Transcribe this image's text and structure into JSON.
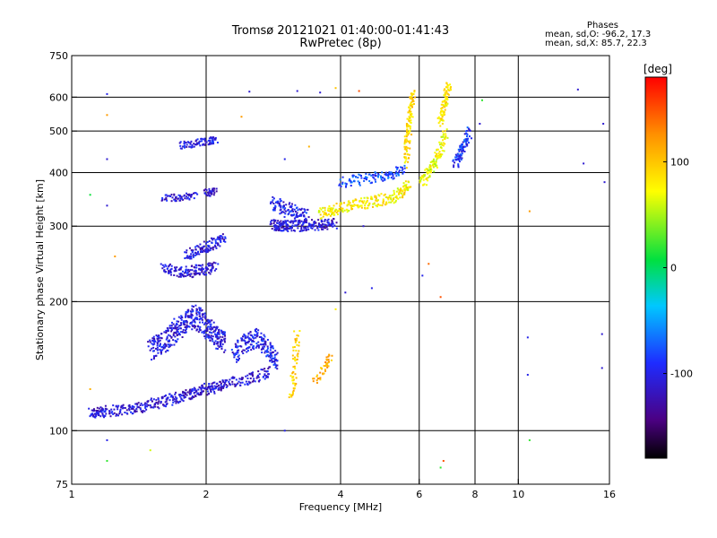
{
  "header": {
    "title_line1": "Tromsø 20121021 01:40:00-01:41:43",
    "title_line2": "RwPretec (8p)",
    "phases_title": "Phases",
    "phases_o": "mean, sd,O: -96.2, 17.3",
    "phases_x": "mean, sd,X:  85.7, 22.3"
  },
  "colorbar": {
    "unit": "[deg]",
    "ticks": [
      {
        "value": 100,
        "label": "100"
      },
      {
        "value": 0,
        "label": "0"
      },
      {
        "value": -100,
        "label": "-100"
      }
    ],
    "range": [
      -180,
      180
    ]
  },
  "chart_data": {
    "type": "scatter",
    "xlabel": "Frequency [MHz]",
    "ylabel": "Stationary phase Virtual Height [km]",
    "x_scale": "log",
    "y_scale": "log",
    "xlim": [
      1,
      16
    ],
    "ylim": [
      75,
      750
    ],
    "grid": true,
    "x_ticks": [
      {
        "value": 1,
        "label": "1"
      },
      {
        "value": 2,
        "label": "2"
      },
      {
        "value": 4,
        "label": "4"
      },
      {
        "value": 6,
        "label": "6"
      },
      {
        "value": 8,
        "label": "8"
      },
      {
        "value": 10,
        "label": "10"
      },
      {
        "value": 16,
        "label": "16"
      }
    ],
    "y_ticks": [
      {
        "value": 75,
        "label": "75"
      },
      {
        "value": 100,
        "label": "100"
      },
      {
        "value": 200,
        "label": "200"
      },
      {
        "value": 300,
        "label": "300"
      },
      {
        "value": 400,
        "label": "400"
      },
      {
        "value": 500,
        "label": "500"
      },
      {
        "value": 600,
        "label": "600"
      },
      {
        "value": 750,
        "label": "750"
      }
    ],
    "color_scale": {
      "variable": "phase [deg]",
      "min": -180,
      "max": 180
    },
    "traces": [
      {
        "f": [
          1.1,
          1.15,
          1.2,
          1.3,
          1.4,
          1.5,
          1.6,
          1.7,
          1.8,
          1.9,
          2.0,
          2.1,
          2.2,
          2.4,
          2.6,
          2.8
        ],
        "h": [
          110,
          110,
          111,
          112,
          113,
          115,
          117,
          119,
          121,
          123,
          125,
          126,
          128,
          131,
          134,
          137
        ],
        "phase": -110,
        "density": 3
      },
      {
        "f": [
          1.5,
          1.6,
          1.7,
          1.8,
          1.9,
          2.0,
          2.1,
          2.2
        ],
        "h": [
          155,
          160,
          170,
          180,
          185,
          175,
          165,
          160
        ],
        "phase": -105,
        "density": 6
      },
      {
        "f": [
          2.3,
          2.45,
          2.6,
          2.75,
          2.9
        ],
        "h": [
          150,
          160,
          165,
          155,
          145
        ],
        "phase": -100,
        "density": 5
      },
      {
        "f": [
          1.6,
          1.7,
          1.8,
          1.9,
          2.0,
          2.1
        ],
        "h": [
          238,
          236,
          234,
          236,
          238,
          240
        ],
        "phase": -110,
        "density": 3
      },
      {
        "f": [
          1.8,
          1.9,
          2.0,
          2.1,
          2.2
        ],
        "h": [
          258,
          262,
          268,
          275,
          283
        ],
        "phase": -105,
        "density": 3
      },
      {
        "f": [
          1.6,
          1.7,
          1.8,
          1.9
        ],
        "h": [
          350,
          350,
          352,
          353
        ],
        "phase": -110,
        "density": 2
      },
      {
        "f": [
          2.0,
          2.05,
          2.1
        ],
        "h": [
          358,
          360,
          362
        ],
        "phase": -110,
        "density": 2
      },
      {
        "f": [
          1.75,
          1.85,
          1.95,
          2.05,
          2.1
        ],
        "h": [
          463,
          466,
          470,
          475,
          480
        ],
        "phase": -105,
        "density": 2
      },
      {
        "f": [
          2.8,
          2.9,
          3.0,
          3.1,
          3.3,
          3.5,
          3.7,
          3.9
        ],
        "h": [
          303,
          301,
          300,
          300,
          301,
          302,
          303,
          305
        ],
        "phase": -110,
        "density": 3
      },
      {
        "f": [
          2.8,
          3.0,
          3.2,
          3.4
        ],
        "h": [
          340,
          330,
          320,
          315
        ],
        "phase": -100,
        "density": 4
      },
      {
        "f": [
          3.6,
          3.8,
          4.0,
          4.3,
          4.6,
          4.9,
          5.2,
          5.5,
          5.7
        ],
        "h": [
          320,
          326,
          330,
          336,
          340,
          345,
          350,
          360,
          375
        ],
        "phase": 80,
        "density": 3
      },
      {
        "f": [
          4.0,
          4.4,
          4.8,
          5.2,
          5.6
        ],
        "h": [
          380,
          385,
          390,
          398,
          410
        ],
        "phase": -80,
        "density": 3
      },
      {
        "f": [
          5.6,
          5.65,
          5.7,
          5.75,
          5.8
        ],
        "h": [
          420,
          470,
          520,
          570,
          620
        ],
        "phase": 90,
        "density": 3
      },
      {
        "f": [
          6.1,
          6.3,
          6.5,
          6.7,
          6.9
        ],
        "h": [
          380,
          400,
          420,
          450,
          500
        ],
        "phase": 70,
        "density": 3
      },
      {
        "f": [
          6.7,
          6.8,
          6.9,
          7.0
        ],
        "h": [
          520,
          560,
          600,
          640
        ],
        "phase": 80,
        "density": 3
      },
      {
        "f": [
          7.2,
          7.4,
          7.6,
          7.8
        ],
        "h": [
          420,
          440,
          470,
          500
        ],
        "phase": -90,
        "density": 3
      },
      {
        "f": [
          3.1,
          3.15,
          3.2
        ],
        "h": [
          120,
          140,
          170
        ],
        "phase": 95,
        "density": 3
      },
      {
        "f": [
          3.5,
          3.7,
          3.8
        ],
        "h": [
          130,
          140,
          150
        ],
        "phase": 110,
        "density": 2
      }
    ],
    "scatter_points": [
      {
        "f": 1.2,
        "h": 610,
        "phase": -100
      },
      {
        "f": 1.2,
        "h": 545,
        "phase": 120
      },
      {
        "f": 1.2,
        "h": 430,
        "phase": -110
      },
      {
        "f": 1.2,
        "h": 335,
        "phase": -110
      },
      {
        "f": 1.25,
        "h": 255,
        "phase": 120
      },
      {
        "f": 1.1,
        "h": 355,
        "phase": 10
      },
      {
        "f": 1.2,
        "h": 95,
        "phase": -100
      },
      {
        "f": 1.2,
        "h": 85,
        "phase": 20
      },
      {
        "f": 1.1,
        "h": 125,
        "phase": 110
      },
      {
        "f": 1.5,
        "h": 90,
        "phase": 60
      },
      {
        "f": 2.4,
        "h": 540,
        "phase": 120
      },
      {
        "f": 2.5,
        "h": 618,
        "phase": -110
      },
      {
        "f": 3.2,
        "h": 620,
        "phase": -110
      },
      {
        "f": 3.6,
        "h": 615,
        "phase": -110
      },
      {
        "f": 3.9,
        "h": 630,
        "phase": 100
      },
      {
        "f": 4.4,
        "h": 620,
        "phase": 150
      },
      {
        "f": 6.3,
        "h": 245,
        "phase": 140
      },
      {
        "f": 6.1,
        "h": 230,
        "phase": -100
      },
      {
        "f": 6.7,
        "h": 205,
        "phase": 150
      },
      {
        "f": 4.7,
        "h": 215,
        "phase": -100
      },
      {
        "f": 3.9,
        "h": 192,
        "phase": 80
      },
      {
        "f": 3.0,
        "h": 100,
        "phase": -100
      },
      {
        "f": 6.8,
        "h": 85,
        "phase": 150
      },
      {
        "f": 6.7,
        "h": 82,
        "phase": 20
      },
      {
        "f": 8.2,
        "h": 520,
        "phase": -110
      },
      {
        "f": 8.3,
        "h": 590,
        "phase": 20
      },
      {
        "f": 10.6,
        "h": 325,
        "phase": 120
      },
      {
        "f": 10.5,
        "h": 165,
        "phase": -100
      },
      {
        "f": 10.5,
        "h": 135,
        "phase": -100
      },
      {
        "f": 10.6,
        "h": 95,
        "phase": 20
      },
      {
        "f": 13.6,
        "h": 625,
        "phase": -110
      },
      {
        "f": 14.0,
        "h": 420,
        "phase": -110
      },
      {
        "f": 15.5,
        "h": 520,
        "phase": -110
      },
      {
        "f": 15.6,
        "h": 380,
        "phase": -110
      },
      {
        "f": 15.4,
        "h": 140,
        "phase": -110
      },
      {
        "f": 15.4,
        "h": 168,
        "phase": -110
      },
      {
        "f": 4.1,
        "h": 210,
        "phase": -110
      },
      {
        "f": 4.5,
        "h": 300,
        "phase": -110
      },
      {
        "f": 3.0,
        "h": 430,
        "phase": -100
      },
      {
        "f": 3.4,
        "h": 460,
        "phase": 110
      }
    ]
  }
}
